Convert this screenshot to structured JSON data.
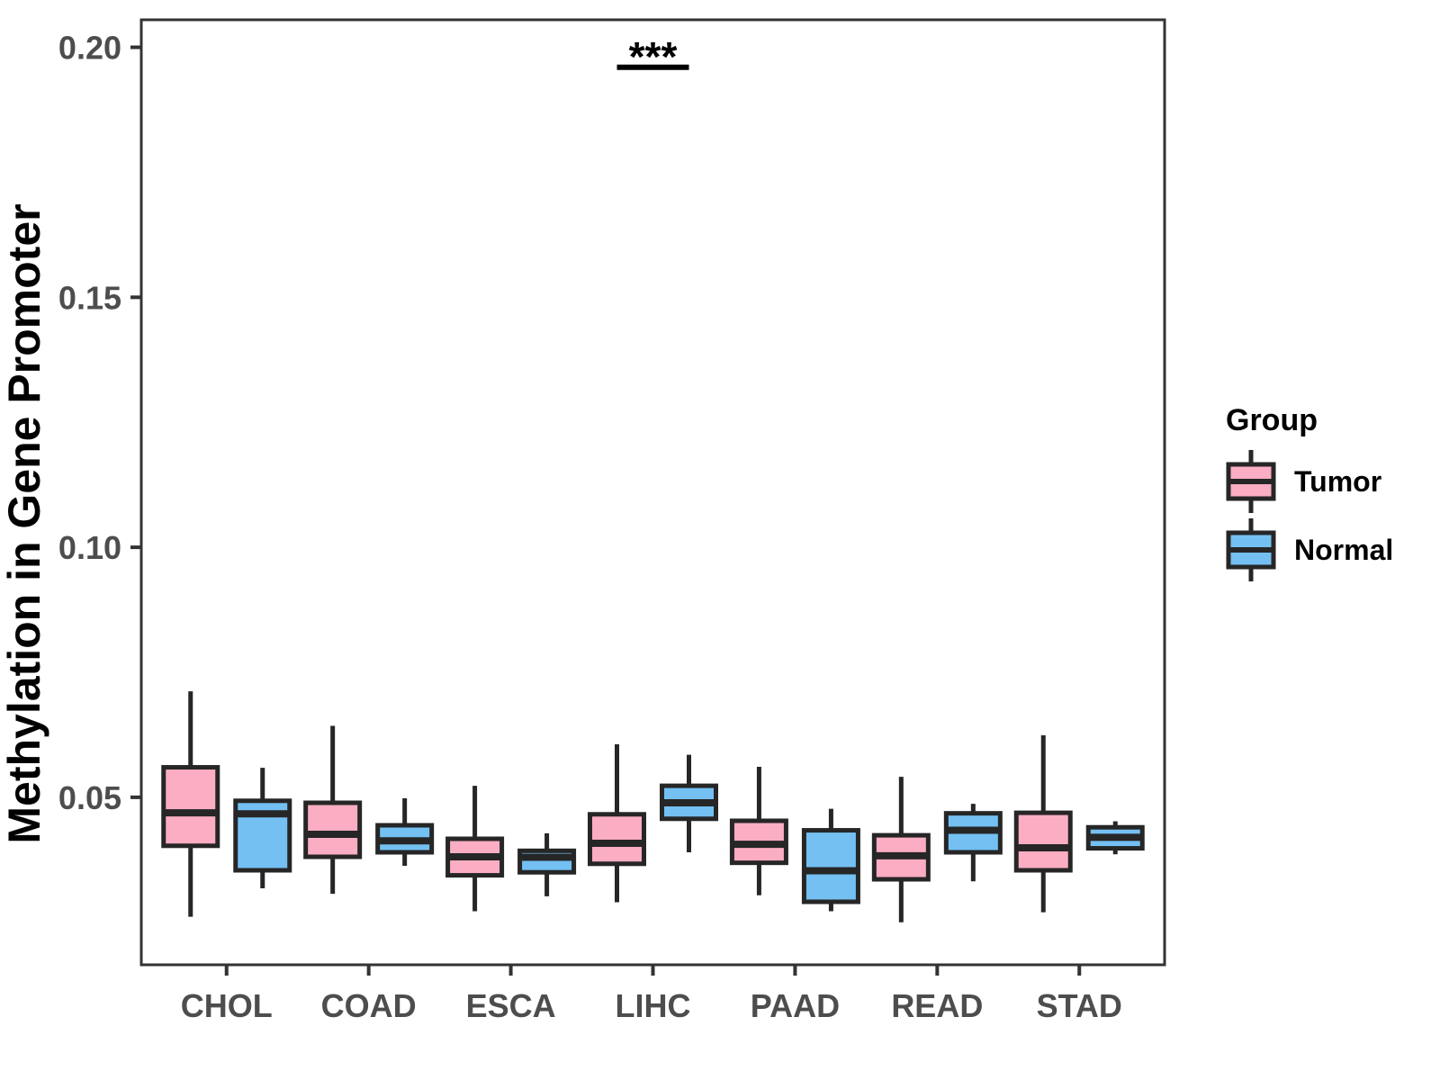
{
  "figure": {
    "background": "#FFFFFF",
    "panel_border_color": "#333333",
    "tick_color": "#333333",
    "axis_text_color": "#4D4D4D",
    "box_outline_color": "#262626",
    "annotation_color": "#000000",
    "legend": {
      "title": "Group",
      "items": [
        {
          "label": "Tumor",
          "color": "#FBADC3"
        },
        {
          "label": "Normal",
          "color": "#74C0F2"
        }
      ]
    }
  },
  "chart_data": {
    "type": "boxplot",
    "title": "",
    "xlabel": "",
    "ylabel": "Methylation in Gene Promoter",
    "categories": [
      "CHOL",
      "COAD",
      "ESCA",
      "LIHC",
      "PAAD",
      "READ",
      "STAD"
    ],
    "y_ticks": {
      "values": [
        0.05,
        0.1,
        0.15,
        0.2
      ],
      "labels": [
        "0.05",
        "0.10",
        "0.15",
        "0.20"
      ]
    },
    "ylim": [
      0.0165,
      0.2055
    ],
    "grid": false,
    "legend_position": "right",
    "series": [
      {
        "name": "Tumor",
        "color": "#FBADC3",
        "boxes": [
          {
            "category": "CHOL",
            "min": 0.0261,
            "q1": 0.0403,
            "median": 0.0469,
            "q3": 0.056,
            "max": 0.0712
          },
          {
            "category": "COAD",
            "min": 0.0307,
            "q1": 0.0381,
            "median": 0.0426,
            "q3": 0.0489,
            "max": 0.0643
          },
          {
            "category": "ESCA",
            "min": 0.0272,
            "q1": 0.0344,
            "median": 0.0381,
            "q3": 0.0417,
            "max": 0.0523
          },
          {
            "category": "LIHC",
            "min": 0.029,
            "q1": 0.0367,
            "median": 0.0408,
            "q3": 0.0466,
            "max": 0.0606
          },
          {
            "category": "PAAD",
            "min": 0.0304,
            "q1": 0.0369,
            "median": 0.0406,
            "q3": 0.0453,
            "max": 0.0561
          },
          {
            "category": "READ",
            "min": 0.025,
            "q1": 0.0336,
            "median": 0.0383,
            "q3": 0.0424,
            "max": 0.0541
          },
          {
            "category": "STAD",
            "min": 0.027,
            "q1": 0.0354,
            "median": 0.0399,
            "q3": 0.0469,
            "max": 0.0624
          }
        ]
      },
      {
        "name": "Normal",
        "color": "#74C0F2",
        "boxes": [
          {
            "category": "CHOL",
            "min": 0.0318,
            "q1": 0.0354,
            "median": 0.0467,
            "q3": 0.0493,
            "max": 0.0559
          },
          {
            "category": "COAD",
            "min": 0.0363,
            "q1": 0.039,
            "median": 0.0413,
            "q3": 0.0444,
            "max": 0.0498
          },
          {
            "category": "ESCA",
            "min": 0.0302,
            "q1": 0.035,
            "median": 0.038,
            "q3": 0.0393,
            "max": 0.0428
          },
          {
            "category": "LIHC",
            "min": 0.039,
            "q1": 0.0457,
            "median": 0.0489,
            "q3": 0.0523,
            "max": 0.0585
          },
          {
            "category": "PAAD",
            "min": 0.0272,
            "q1": 0.0291,
            "median": 0.0353,
            "q3": 0.0434,
            "max": 0.0477
          },
          {
            "category": "READ",
            "min": 0.0332,
            "q1": 0.039,
            "median": 0.0434,
            "q3": 0.0468,
            "max": 0.0487
          },
          {
            "category": "STAD",
            "min": 0.0386,
            "q1": 0.0398,
            "median": 0.042,
            "q3": 0.044,
            "max": 0.0452
          }
        ]
      }
    ],
    "annotations": [
      {
        "text": "***",
        "category": "LIHC",
        "y": 0.196
      }
    ]
  }
}
